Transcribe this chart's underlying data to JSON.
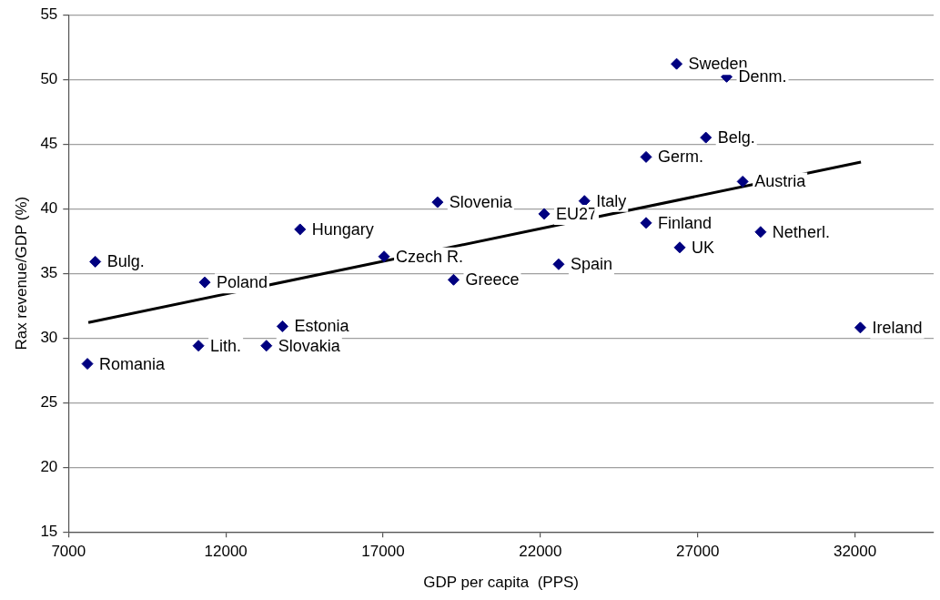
{
  "chart_data": {
    "type": "scatter",
    "xlabel": "GDP per capita  (PPS)",
    "ylabel": "Rax revenue/GDP (%)",
    "xlim": [
      7000,
      34500
    ],
    "xticks": [
      7000,
      12000,
      17000,
      22000,
      27000,
      32000
    ],
    "ylim": [
      15,
      55
    ],
    "yticks": [
      15,
      20,
      25,
      30,
      35,
      40,
      45,
      50,
      55
    ],
    "grid": "y",
    "legend": false,
    "marker": "diamond",
    "series": [
      {
        "color": "#000080",
        "x": [
          7600,
          7850,
          11330,
          11130,
          13290,
          13800,
          14360,
          17030,
          18730,
          19240,
          22120,
          23400,
          22580,
          25360,
          25360,
          26330,
          26430,
          27920,
          27260,
          28430,
          29000,
          32170
        ],
        "values": [
          28.0,
          35.9,
          34.3,
          29.4,
          29.4,
          30.9,
          38.4,
          36.3,
          40.5,
          34.5,
          39.6,
          40.6,
          35.7,
          44.0,
          38.9,
          51.2,
          37.0,
          50.2,
          45.5,
          42.1,
          38.2,
          30.8
        ]
      },
      {
        "type": "line",
        "color": "#000000",
        "marker": "none",
        "x": [
          7630,
          32190
        ],
        "values": [
          31.2,
          43.6
        ]
      }
    ],
    "annotations": [
      {
        "text": "Romania",
        "x": 7600,
        "y": 28.0
      },
      {
        "text": "Bulg.",
        "x": 7850,
        "y": 35.9
      },
      {
        "text": "Poland",
        "x": 11330,
        "y": 34.3
      },
      {
        "text": "Lith.",
        "x": 11130,
        "y": 29.4
      },
      {
        "text": "Slovakia",
        "x": 13290,
        "y": 29.4
      },
      {
        "text": "Estonia",
        "x": 13800,
        "y": 30.9
      },
      {
        "text": "Hungary",
        "x": 14360,
        "y": 38.4
      },
      {
        "text": "Czech R.",
        "x": 17030,
        "y": 36.3
      },
      {
        "text": "Slovenia",
        "x": 18730,
        "y": 40.5
      },
      {
        "text": "Greece",
        "x": 19240,
        "y": 34.5
      },
      {
        "text": "EU27",
        "x": 22120,
        "y": 39.6
      },
      {
        "text": "Italy",
        "x": 23400,
        "y": 40.6
      },
      {
        "text": "Spain",
        "x": 22580,
        "y": 35.7
      },
      {
        "text": "Germ.",
        "x": 25360,
        "y": 44.0
      },
      {
        "text": "Finland",
        "x": 25360,
        "y": 38.9
      },
      {
        "text": "Sweden",
        "x": 26330,
        "y": 51.2
      },
      {
        "text": "UK",
        "x": 26430,
        "y": 37.0
      },
      {
        "text": "Denm.",
        "x": 27920,
        "y": 50.2
      },
      {
        "text": "Belg.",
        "x": 27260,
        "y": 45.5
      },
      {
        "text": "Austria",
        "x": 28430,
        "y": 42.1
      },
      {
        "text": "Netherl.",
        "x": 29000,
        "y": 38.2
      },
      {
        "text": "Ireland",
        "x": 32170,
        "y": 30.8
      }
    ]
  }
}
